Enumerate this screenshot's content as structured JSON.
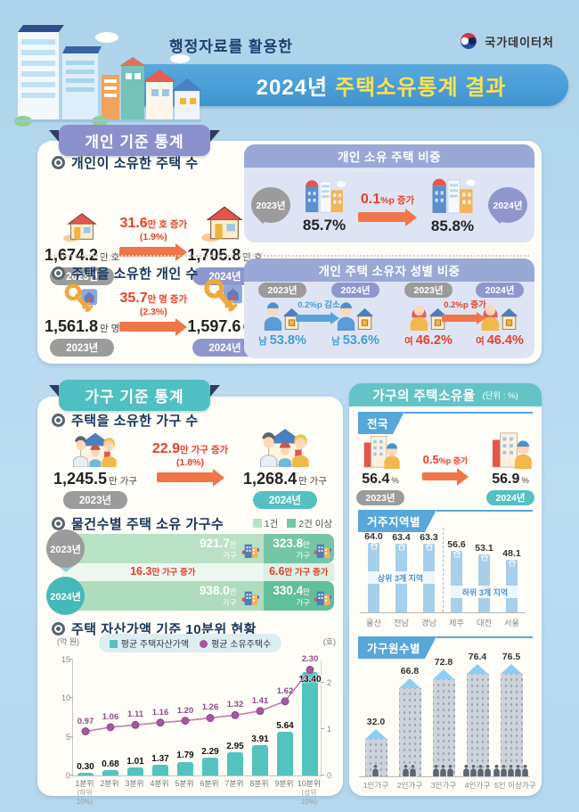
{
  "header": {
    "tagline": "행정자료를 활용한",
    "title_year": "2024년",
    "title_main": "주택소유통계 결과",
    "agency": "국가데이터처"
  },
  "individual": {
    "ribbon": "개인 기준 통계",
    "housing_count": {
      "title": "개인이 소유한 주택 수",
      "from": {
        "value": "1,674.2",
        "unit": "만 호",
        "year": "2023년"
      },
      "change": {
        "value": "31.6",
        "unit": "만 호 증가",
        "pct": "(1.9%)"
      },
      "to": {
        "value": "1,705.8",
        "unit": "만 호",
        "year": "2024년"
      }
    },
    "share_panel": {
      "title": "개인 소유 주택 비중",
      "from_year": "2023년",
      "from_value": "85.7%",
      "change_value": "0.1",
      "change_unit": "%p 증가",
      "to_year": "2024년",
      "to_value": "85.8%"
    },
    "owner_count": {
      "title": "주택을 소유한 개인 수",
      "from": {
        "value": "1,561.8",
        "unit": "만 명",
        "year": "2023년"
      },
      "change": {
        "value": "35.7",
        "unit": "만 명 증가",
        "pct": "(2.3%)"
      },
      "to": {
        "value": "1,597.6",
        "unit": "만 명",
        "year": "2024년"
      }
    },
    "gender_panel": {
      "title": "개인 주택 소유자 성별 비중",
      "male": {
        "from_year": "2023년",
        "to_year": "2024년",
        "from_label": "남",
        "from_value": "53.8%",
        "change_value": "0.2",
        "change_unit": "%p 감소",
        "to_label": "남",
        "to_value": "53.6%"
      },
      "female": {
        "from_year": "2023년",
        "to_year": "2024년",
        "from_label": "여",
        "from_value": "46.2%",
        "change_value": "0.2",
        "change_unit": "%p 증가",
        "to_label": "여",
        "to_value": "46.4%"
      }
    }
  },
  "household": {
    "ribbon": "가구 기준 통계",
    "household_count": {
      "title": "주택을 소유한 가구 수",
      "from": {
        "value": "1,245.5",
        "unit": "만 가구",
        "year": "2023년"
      },
      "change": {
        "value": "22.9",
        "unit": "만 가구 증가",
        "pct": "(1.8%)"
      },
      "to": {
        "value": "1,268.4",
        "unit": "만 가구",
        "year": "2024년"
      }
    },
    "by_count_title": "물건수별 주택 소유 가구수",
    "decile_title": "주택 자산가액 기준 10분위 현황"
  },
  "ownership_rate": {
    "title": "가구의 주택소유율",
    "unit_note": "(단위 : %)",
    "national": {
      "tab": "전국",
      "from_value": "56.4",
      "from_unit": "%",
      "from_year": "2023년",
      "change_value": "0.5",
      "change_unit": "%p 증가",
      "to_value": "56.9",
      "to_unit": "%",
      "to_year": "2024년"
    },
    "region_tab": "거주지역별",
    "size_tab": "가구원수별"
  },
  "chart_data": [
    {
      "id": "asset_decile",
      "type": "bar",
      "title": "주택 자산가액 기준 10분위 현황",
      "categories": [
        "1분위",
        "2분위",
        "3분위",
        "4분위",
        "5분위",
        "6분위",
        "7분위",
        "8분위",
        "9분위",
        "10분위"
      ],
      "category_notes": [
        "(하위10%)",
        "",
        "",
        "",
        "",
        "",
        "",
        "",
        "",
        "(상위10%)"
      ],
      "series": [
        {
          "name": "평균 주택자산가액",
          "type": "bar",
          "axis": "left",
          "color": "#53c3bd",
          "values": [
            0.3,
            0.68,
            1.01,
            1.37,
            1.79,
            2.29,
            2.95,
            3.91,
            5.64,
            13.4
          ]
        },
        {
          "name": "평균 소유주택수",
          "type": "line",
          "axis": "right",
          "color": "#a4599e",
          "values": [
            0.97,
            1.06,
            1.11,
            1.16,
            1.2,
            1.26,
            1.32,
            1.41,
            1.62,
            2.3
          ]
        }
      ],
      "left_axis": {
        "label": "(억 원)",
        "ticks": [
          0,
          5,
          10,
          15
        ],
        "max": 15
      },
      "right_axis": {
        "label": "(호)",
        "ticks": [
          0,
          1,
          2
        ],
        "max": 2.5
      },
      "legend_position": "top"
    },
    {
      "id": "by_property_count",
      "type": "bar",
      "title": "물건수별 주택 소유 가구수",
      "legend": [
        "1건",
        "2건 이상"
      ],
      "categories": [
        "2023년",
        "2024년"
      ],
      "series": [
        {
          "name": "1건",
          "color": "#b9e1c6",
          "values": [
            921.7,
            938.0
          ]
        },
        {
          "name": "2건 이상",
          "color": "#74c6a7",
          "values": [
            323.8,
            330.4
          ]
        }
      ],
      "value_unit": "만",
      "value_unit2": "가구",
      "changes": [
        {
          "value": "16.3",
          "unit": "만 가구 증가"
        },
        {
          "value": "6.6",
          "unit": "만 가구 증가"
        }
      ]
    },
    {
      "id": "by_region",
      "type": "bar",
      "title": "거주지역별",
      "categories": [
        "울산",
        "전남",
        "경남",
        "제주",
        "대전",
        "서울"
      ],
      "values": [
        64.0,
        63.4,
        63.3,
        56.6,
        53.1,
        48.1
      ],
      "group_bands": [
        "상위 3개 지역",
        "하위 3개 지역"
      ],
      "bar_color": "#a6cfe9",
      "ylim": [
        0,
        70
      ]
    },
    {
      "id": "by_household_size",
      "type": "bar",
      "title": "가구원수별",
      "categories": [
        "1인가구",
        "2인가구",
        "3인가구",
        "4인가구",
        "5인 이상가구"
      ],
      "values": [
        32.0,
        66.8,
        72.8,
        76.4,
        76.5
      ],
      "persons_per_bar": [
        1,
        2,
        3,
        4,
        5
      ],
      "ylim": [
        0,
        80
      ]
    }
  ]
}
